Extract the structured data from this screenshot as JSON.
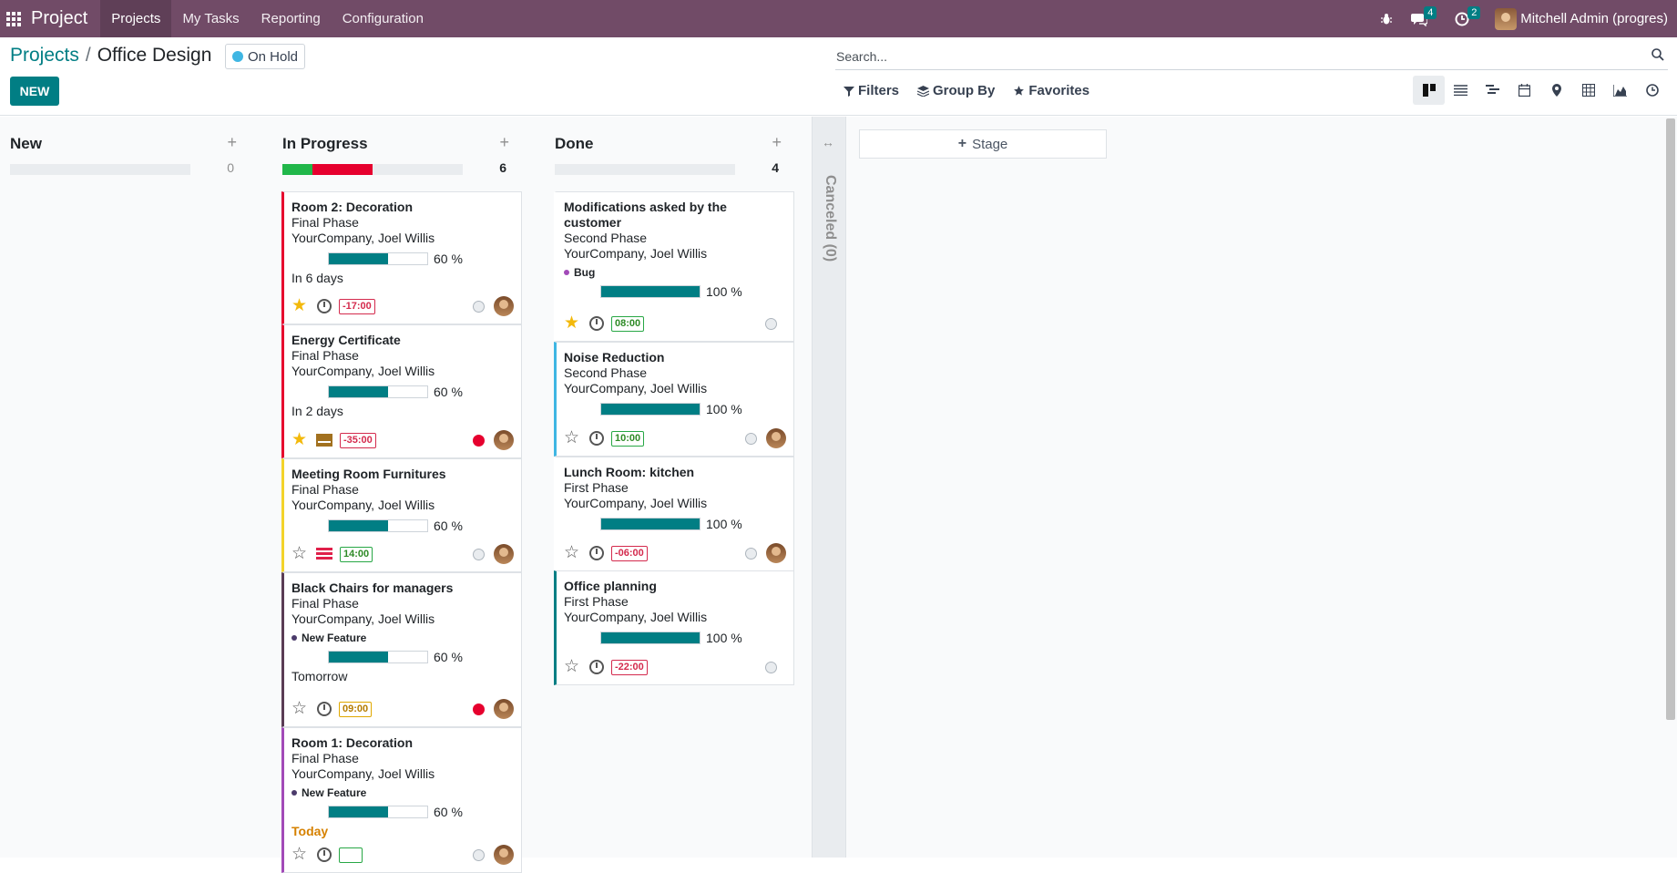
{
  "navbar": {
    "brand": "Project",
    "menus": [
      "Projects",
      "My Tasks",
      "Reporting",
      "Configuration"
    ],
    "messages_badge": "4",
    "activities_badge": "2",
    "user": "Mitchell Admin (progres)"
  },
  "control": {
    "breadcrumb_root": "Projects",
    "breadcrumb_sep": "/",
    "breadcrumb_current": "Office Design",
    "status": "On Hold",
    "new_label": "NEW",
    "search_placeholder": "Search...",
    "filters_label": "Filters",
    "groupby_label": "Group By",
    "favorites_label": "Favorites"
  },
  "columns": [
    {
      "name": "New",
      "count": "0",
      "progress": [],
      "cards": []
    },
    {
      "name": "In Progress",
      "count": "6",
      "progress": [
        {
          "color": "#21b74a",
          "fraction": 0.1667
        },
        {
          "color": "#e6002e",
          "fraction": 0.3333
        }
      ],
      "cards": [
        {
          "title": "Room 2: Decoration",
          "stage": "Final Phase",
          "customer": "YourCompany, Joel Willis",
          "progress": "60 %",
          "progress_value": 60,
          "deadline": "In 6 days",
          "starred": true,
          "activity": "clock",
          "time": "-17:00",
          "time_state": "red",
          "kanban_state": "normal",
          "border": "#e6002e",
          "avatar": true
        },
        {
          "title": "Energy Certificate",
          "stage": "Final Phase",
          "customer": "YourCompany, Joel Willis",
          "progress": "60 %",
          "progress_value": 60,
          "deadline": "In 2 days",
          "starred": true,
          "activity": "mail",
          "time": "-35:00",
          "time_state": "red",
          "kanban_state": "blocked",
          "border": "#e6002e",
          "avatar": true
        },
        {
          "title": "Meeting Room Furnitures",
          "stage": "Final Phase",
          "customer": "YourCompany, Joel Willis",
          "progress": "60 %",
          "progress_value": 60,
          "starred": false,
          "activity": "tasks",
          "time": "14:00",
          "time_state": "green",
          "kanban_state": "normal",
          "border": "#f3d32a",
          "avatar": true
        },
        {
          "title": "Black Chairs for managers",
          "stage": "Final Phase",
          "customer": "YourCompany, Joel Willis",
          "tag": "New Feature",
          "tag_color": "#4b3b6b",
          "progress": "60 %",
          "progress_value": 60,
          "deadline": "Tomorrow",
          "starred": false,
          "activity": "clock",
          "time": "09:00",
          "time_state": "amber",
          "kanban_state": "blocked",
          "border": "#5a3c55",
          "avatar": true
        },
        {
          "title": "Room 1: Decoration",
          "stage": "Final Phase",
          "customer": "YourCompany, Joel Willis",
          "tag": "New Feature",
          "tag_color": "#4b3b6b",
          "progress": "60 %",
          "progress_value": 60,
          "deadline": "Today",
          "deadline_today": true,
          "starred": false,
          "activity": "clock",
          "time": "",
          "time_state": "green",
          "kanban_state": "normal",
          "border": "#a24ab8",
          "avatar": true
        }
      ]
    },
    {
      "name": "Done",
      "count": "4",
      "progress": [],
      "cards": [
        {
          "title": "Modifications asked by the customer",
          "stage": "Second Phase",
          "customer": "YourCompany, Joel Willis",
          "tag": "Bug",
          "tag_color": "#a24ab8",
          "progress": "100 %",
          "progress_value": 100,
          "starred": true,
          "activity": "clock",
          "time": "08:00",
          "time_state": "green",
          "kanban_state": "normal",
          "border": "transparent",
          "avatar": false
        },
        {
          "title": "Noise Reduction",
          "stage": "Second Phase",
          "customer": "YourCompany, Joel Willis",
          "progress": "100 %",
          "progress_value": 100,
          "starred": false,
          "activity": "clock",
          "time": "10:00",
          "time_state": "green",
          "kanban_state": "normal",
          "border": "#3fb6e3",
          "avatar": true
        },
        {
          "title": "Lunch Room: kitchen",
          "stage": "First Phase",
          "customer": "YourCompany, Joel Willis",
          "progress": "100 %",
          "progress_value": 100,
          "starred": false,
          "activity": "clock",
          "time": "-06:00",
          "time_state": "red",
          "kanban_state": "normal",
          "border": "transparent",
          "avatar": true
        },
        {
          "title": "Office planning",
          "stage": "First Phase",
          "customer": "YourCompany, Joel Willis",
          "progress": "100 %",
          "progress_value": 100,
          "starred": false,
          "activity": "clock",
          "time": "-22:00",
          "time_state": "red",
          "kanban_state": "normal",
          "border": "#017e84",
          "avatar": false
        }
      ]
    }
  ],
  "folded_column": "Canceled (0)",
  "add_stage_label": "Stage",
  "icons": {
    "apps": "apps-grid-icon",
    "bug": "bug-icon",
    "chat": "chat-icon",
    "activity": "clock-icon",
    "search": "search-icon"
  }
}
